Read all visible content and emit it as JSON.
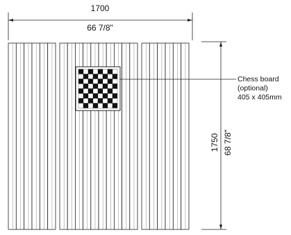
{
  "dimensions": {
    "width_mm": "1700",
    "width_in": "66 7/8\"",
    "length_mm": "1750",
    "length_in": "68 7/8\""
  },
  "callout": {
    "title": "Chess board",
    "note": "(optional)",
    "size": "405 x 405mm"
  }
}
